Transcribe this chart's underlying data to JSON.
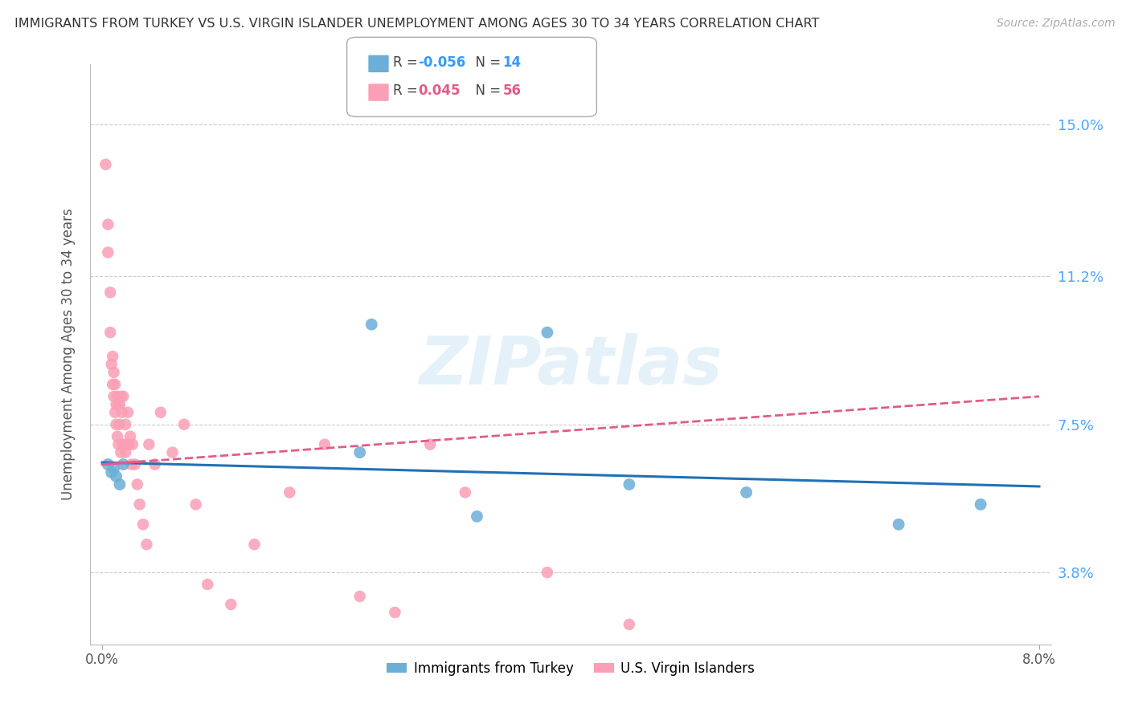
{
  "title": "IMMIGRANTS FROM TURKEY VS U.S. VIRGIN ISLANDER UNEMPLOYMENT AMONG AGES 30 TO 34 YEARS CORRELATION CHART",
  "source": "Source: ZipAtlas.com",
  "ylabel": "Unemployment Among Ages 30 to 34 years",
  "xlabel_blue": "Immigrants from Turkey",
  "xlabel_pink": "U.S. Virgin Islanders",
  "y_ticks": [
    3.8,
    7.5,
    11.2,
    15.0
  ],
  "y_tick_labels": [
    "3.8%",
    "7.5%",
    "11.2%",
    "15.0%"
  ],
  "xlim": [
    0.0,
    8.0
  ],
  "ylim": [
    2.0,
    16.5
  ],
  "legend_blue_R": "-0.056",
  "legend_blue_N": "14",
  "legend_pink_R": "0.045",
  "legend_pink_N": "56",
  "blue_color": "#6baed6",
  "pink_color": "#fa9fb5",
  "blue_line_color": "#2171b5",
  "pink_line_color": "#e05c8a",
  "watermark": "ZIPatlas",
  "blue_points_x": [
    0.05,
    0.08,
    0.1,
    0.12,
    0.15,
    0.18,
    2.3,
    3.8,
    4.5,
    5.5,
    6.8,
    7.5,
    2.2,
    3.2
  ],
  "blue_points_y": [
    6.5,
    6.3,
    6.4,
    6.2,
    6.0,
    6.5,
    10.0,
    9.8,
    6.0,
    5.8,
    5.0,
    5.5,
    6.8,
    5.2
  ],
  "pink_points_x": [
    0.03,
    0.05,
    0.05,
    0.07,
    0.07,
    0.08,
    0.09,
    0.09,
    0.1,
    0.1,
    0.11,
    0.11,
    0.12,
    0.12,
    0.13,
    0.13,
    0.14,
    0.14,
    0.15,
    0.15,
    0.16,
    0.16,
    0.17,
    0.18,
    0.18,
    0.19,
    0.2,
    0.2,
    0.21,
    0.22,
    0.23,
    0.24,
    0.25,
    0.26,
    0.28,
    0.3,
    0.32,
    0.35,
    0.38,
    0.4,
    0.45,
    0.5,
    0.6,
    0.7,
    0.8,
    0.9,
    1.1,
    1.3,
    1.6,
    1.9,
    2.2,
    2.5,
    2.8,
    3.1,
    3.8,
    4.5
  ],
  "pink_points_y": [
    14.0,
    12.5,
    11.8,
    10.8,
    9.8,
    9.0,
    9.2,
    8.5,
    8.8,
    8.2,
    8.5,
    7.8,
    8.0,
    7.5,
    8.2,
    7.2,
    8.0,
    7.0,
    8.0,
    7.5,
    8.2,
    6.8,
    7.8,
    7.0,
    8.2,
    7.0,
    7.5,
    6.8,
    7.0,
    7.8,
    7.0,
    7.2,
    6.5,
    7.0,
    6.5,
    6.0,
    5.5,
    5.0,
    4.5,
    7.0,
    6.5,
    7.8,
    6.8,
    7.5,
    5.5,
    3.5,
    3.0,
    4.5,
    5.8,
    7.0,
    3.2,
    2.8,
    7.0,
    5.8,
    3.8,
    2.5
  ],
  "blue_trend_x0": 0.0,
  "blue_trend_y0": 6.55,
  "blue_trend_x1": 8.0,
  "blue_trend_y1": 5.95,
  "pink_trend_x0": 0.0,
  "pink_trend_y0": 6.5,
  "pink_trend_x1": 8.0,
  "pink_trend_y1": 8.2
}
